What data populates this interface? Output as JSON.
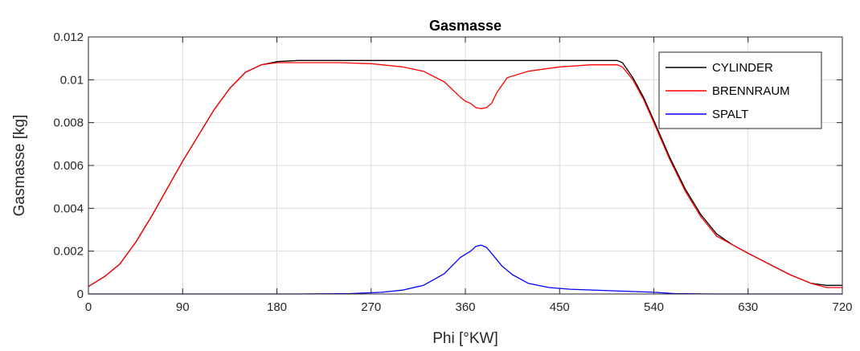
{
  "chart_data": {
    "type": "line",
    "title": "Gasmasse",
    "xlabel": "Phi [°KW]",
    "ylabel": "Gasmasse [kg]",
    "xlim": [
      0,
      720
    ],
    "ylim": [
      0,
      0.012
    ],
    "xticks": [
      0,
      90,
      180,
      270,
      360,
      450,
      540,
      630,
      720
    ],
    "xtick_labels": [
      "0",
      "90",
      "180",
      "270",
      "360",
      "450",
      "540",
      "630",
      "720"
    ],
    "yticks": [
      0,
      0.002,
      0.004,
      0.006,
      0.008,
      0.01,
      0.012
    ],
    "ytick_labels": [
      "0",
      "0.002",
      "0.004",
      "0.006",
      "0.008",
      "0.01",
      "0.012"
    ],
    "grid": true,
    "legend_position": "top-right",
    "series": [
      {
        "name": "CYLINDER",
        "color": "#000000",
        "x": [
          0,
          15,
          30,
          45,
          60,
          75,
          90,
          105,
          120,
          135,
          150,
          165,
          180,
          200,
          240,
          300,
          360,
          400,
          450,
          480,
          500,
          505,
          510,
          520,
          530,
          540,
          555,
          570,
          585,
          600,
          615,
          630,
          650,
          670,
          690,
          705,
          720
        ],
        "y": [
          0.00035,
          0.0008,
          0.0014,
          0.0024,
          0.0036,
          0.0049,
          0.0062,
          0.0074,
          0.0086,
          0.0096,
          0.01035,
          0.0107,
          0.01085,
          0.0109,
          0.0109,
          0.0109,
          0.0109,
          0.0109,
          0.0109,
          0.0109,
          0.0109,
          0.0109,
          0.0108,
          0.0101,
          0.0092,
          0.0081,
          0.0064,
          0.0049,
          0.0037,
          0.0028,
          0.0023,
          0.0019,
          0.0014,
          0.0009,
          0.0005,
          0.0004,
          0.0004
        ]
      },
      {
        "name": "BRENNRAUM",
        "color": "#ff0000",
        "x": [
          0,
          15,
          30,
          45,
          60,
          75,
          90,
          105,
          120,
          135,
          150,
          165,
          180,
          210,
          240,
          270,
          300,
          320,
          340,
          355,
          360,
          365,
          370,
          375,
          380,
          385,
          390,
          400,
          420,
          450,
          480,
          505,
          510,
          520,
          530,
          540,
          555,
          570,
          585,
          600,
          615,
          630,
          650,
          670,
          690,
          705,
          720
        ],
        "y": [
          0.00035,
          0.0008,
          0.0014,
          0.0024,
          0.0036,
          0.0049,
          0.0062,
          0.0074,
          0.0086,
          0.0096,
          0.01035,
          0.0107,
          0.0108,
          0.0108,
          0.0108,
          0.01075,
          0.0106,
          0.0104,
          0.0099,
          0.0092,
          0.009,
          0.0089,
          0.0087,
          0.00865,
          0.0087,
          0.0089,
          0.0094,
          0.0101,
          0.0104,
          0.0106,
          0.0107,
          0.0107,
          0.0106,
          0.01,
          0.0091,
          0.008,
          0.0063,
          0.0048,
          0.0036,
          0.0027,
          0.0023,
          0.0019,
          0.0014,
          0.0009,
          0.0005,
          0.0003,
          0.0003
        ]
      },
      {
        "name": "SPALT",
        "color": "#0000ff",
        "x": [
          0,
          100,
          200,
          250,
          280,
          300,
          320,
          340,
          355,
          365,
          370,
          375,
          380,
          385,
          395,
          405,
          420,
          440,
          460,
          500,
          540,
          560,
          600,
          720
        ],
        "y": [
          0,
          0,
          0,
          2e-05,
          8e-05,
          0.00018,
          0.0004,
          0.00095,
          0.0017,
          0.002,
          0.00222,
          0.00228,
          0.00218,
          0.0019,
          0.0013,
          0.0009,
          0.0005,
          0.0003,
          0.00022,
          0.00015,
          8e-05,
          2e-05,
          0,
          0
        ]
      }
    ]
  }
}
